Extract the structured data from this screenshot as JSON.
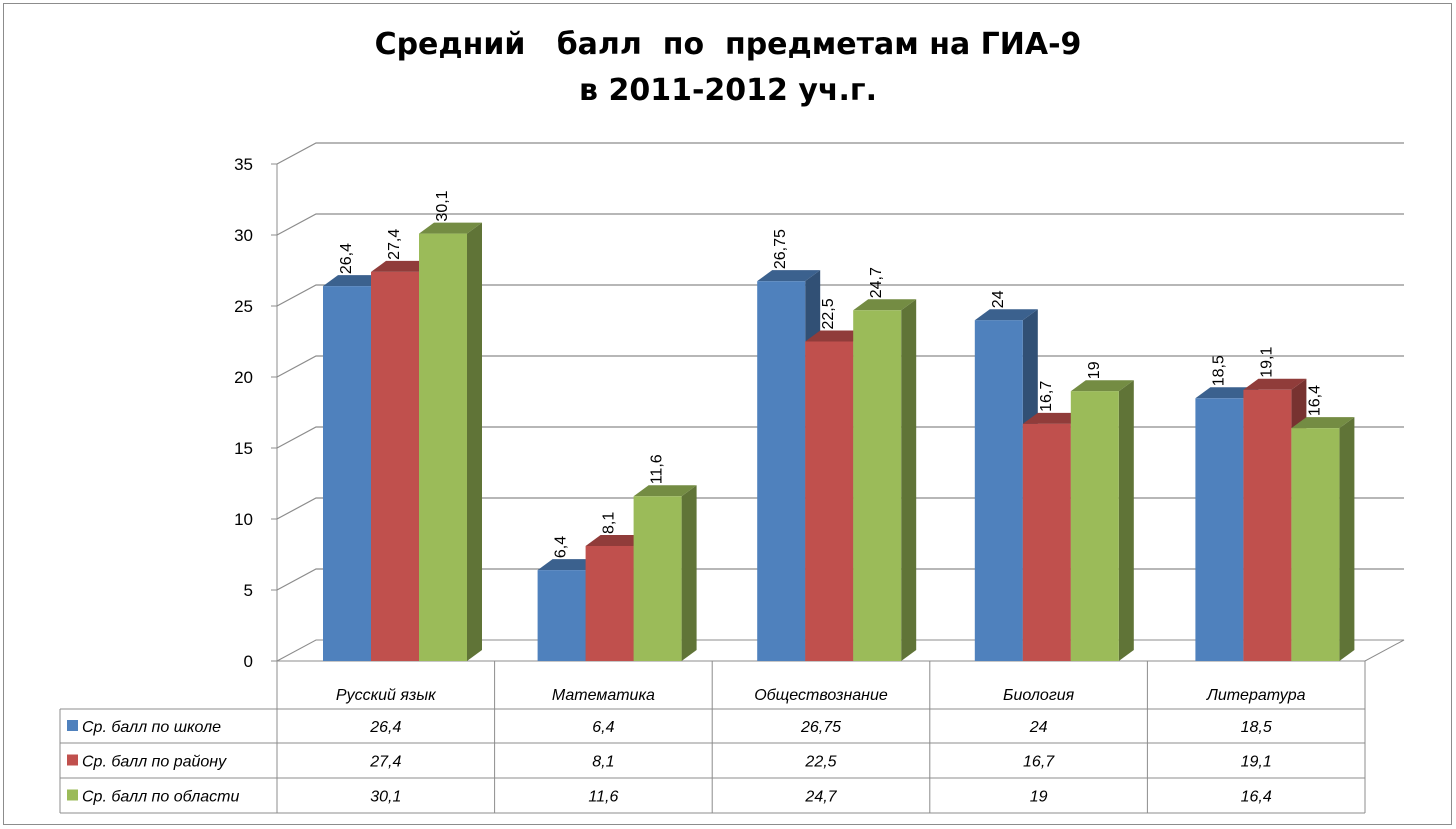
{
  "chart_data": {
    "type": "bar",
    "title_lines": [
      "Средний   балл  по  предметам на ГИА-9",
      "в 2011-2012 уч.г."
    ],
    "categories": [
      "Русский язык",
      "Математика",
      "Обществознание",
      "Биология",
      "Литература"
    ],
    "series": [
      {
        "name": "Ср. балл по школе",
        "color": "#4f81bd",
        "values": [
          26.4,
          6.4,
          26.75,
          24,
          18.5
        ],
        "labels": [
          "26,4",
          "6,4",
          "26,75",
          "24",
          "18,5"
        ]
      },
      {
        "name": "Ср. балл по району",
        "color": "#c0504d",
        "values": [
          27.4,
          8.1,
          22.5,
          16.7,
          19.1
        ],
        "labels": [
          "27,4",
          "8,1",
          "22,5",
          "16,7",
          "19,1"
        ]
      },
      {
        "name": "Ср. балл по области",
        "color": "#9bbb59",
        "values": [
          30.1,
          11.6,
          24.7,
          19,
          16.4
        ],
        "labels": [
          "30,1",
          "11,6",
          "24,7",
          "19",
          "16,4"
        ]
      }
    ],
    "ylim": [
      0,
      35
    ],
    "yticks": [
      0,
      5,
      10,
      15,
      20,
      25,
      30,
      35
    ],
    "grid": true,
    "three_d": true,
    "legend": "data table below chart"
  }
}
